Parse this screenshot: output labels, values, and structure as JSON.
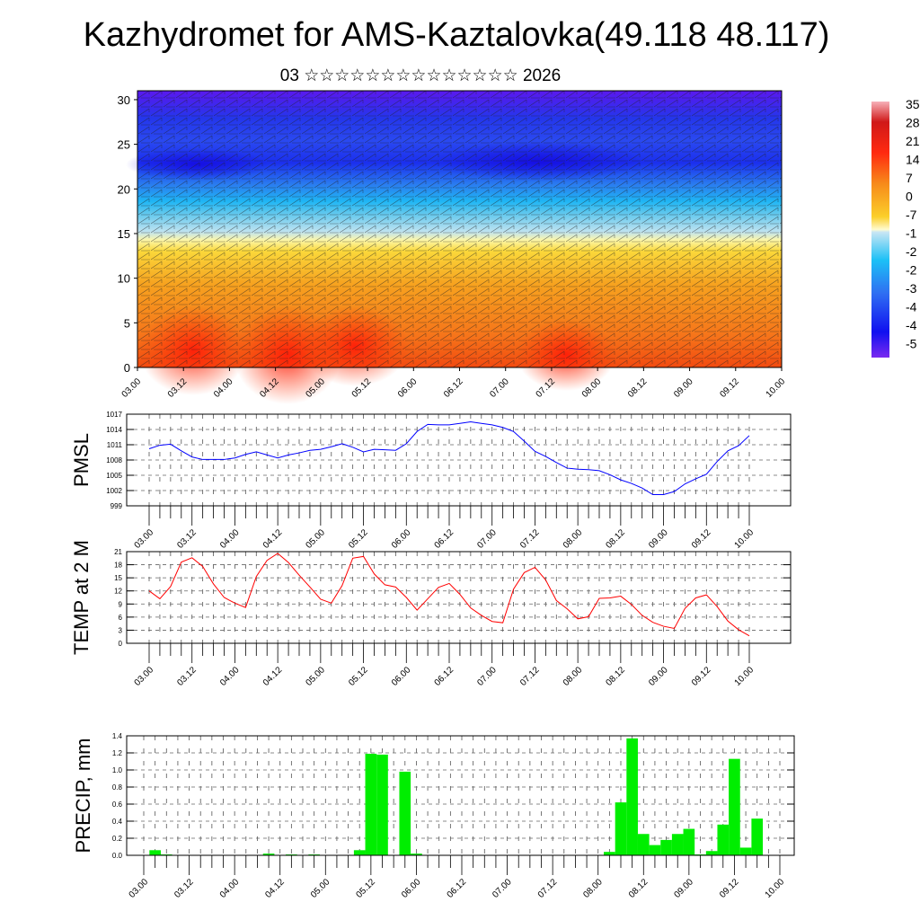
{
  "title": "Kazhydromet for AMS-Kaztalovka(49.118 48.117)",
  "subtitle": "03 ☆☆☆☆☆☆☆☆☆☆☆☆☆☆ 2026",
  "colors": {
    "pmsl": "#0000ff",
    "temp": "#ff0000",
    "precip": "#00ee00"
  },
  "chart_data": [
    {
      "type": "heatmap",
      "x_tick_labels": [
        "03.00",
        "03.12",
        "04.00",
        "04.12",
        "05.00",
        "05.12",
        "06.00",
        "06.12",
        "07.00",
        "07.12",
        "08.00",
        "08.12",
        "09.00",
        "09.12",
        "10.00"
      ],
      "y_ticks": [
        0,
        5,
        10,
        15,
        20,
        25,
        30
      ],
      "ylim": [
        0,
        31
      ],
      "colorbar_labels": [
        "35",
        "28",
        "21",
        "14",
        "7",
        "0",
        "-7",
        "-1",
        "-2",
        "-2",
        "-3",
        "-4",
        "-4",
        "-5"
      ]
    },
    {
      "type": "line",
      "ylabel": "PMSL",
      "x_tick_labels": [
        "03.00",
        "03.12",
        "04.00",
        "04.12",
        "05.00",
        "05.12",
        "06.00",
        "06.12",
        "07.00",
        "07.12",
        "08.00",
        "08.12",
        "09.00",
        "09.12",
        "10.00"
      ],
      "y_ticks": [
        999,
        1002,
        1005,
        1008,
        1011,
        1014,
        1017
      ],
      "ylim": [
        999,
        1017
      ],
      "values": [
        1010.2,
        1010.9,
        1011.1,
        1009.8,
        1008.6,
        1008.1,
        1008.1,
        1008.1,
        1008.4,
        1009.1,
        1009.6,
        1009.0,
        1008.4,
        1009.0,
        1009.4,
        1009.9,
        1010.1,
        1010.6,
        1011.2,
        1010.5,
        1009.6,
        1010.1,
        1010.0,
        1009.9,
        1011.2,
        1013.6,
        1015.0,
        1014.9,
        1014.9,
        1015.2,
        1015.5,
        1015.2,
        1014.9,
        1014.4,
        1013.6,
        1011.7,
        1009.7,
        1008.7,
        1007.5,
        1006.4,
        1006.2,
        1006.1,
        1005.9,
        1005.1,
        1004.1,
        1003.4,
        1002.5,
        1001.2,
        1001.2,
        1001.8,
        1003.3,
        1004.3,
        1005.2,
        1007.7,
        1009.8,
        1010.8,
        1012.8
      ]
    },
    {
      "type": "line",
      "ylabel": "TEMP at 2 M",
      "x_tick_labels": [
        "03.00",
        "03.12",
        "04.00",
        "04.12",
        "05.00",
        "05.12",
        "06.00",
        "06.12",
        "07.00",
        "07.12",
        "08.00",
        "08.12",
        "09.00",
        "09.12",
        "10.00"
      ],
      "y_ticks": [
        0,
        3,
        6,
        9,
        12,
        15,
        18,
        21
      ],
      "ylim": [
        0,
        21
      ],
      "values": [
        12.0,
        10.2,
        13.0,
        18.6,
        19.6,
        17.6,
        13.6,
        10.5,
        9.2,
        8.2,
        15.3,
        19.0,
        20.6,
        18.5,
        15.6,
        12.9,
        10.1,
        9.2,
        13.2,
        19.5,
        19.9,
        15.9,
        13.4,
        12.9,
        10.5,
        7.6,
        10.2,
        12.8,
        13.7,
        11.2,
        8.1,
        6.4,
        5.0,
        4.7,
        12.4,
        16.2,
        17.4,
        14.5,
        9.8,
        7.9,
        5.6,
        6.1,
        10.3,
        10.4,
        10.8,
        8.9,
        6.4,
        4.8,
        3.9,
        3.4,
        8.0,
        10.4,
        11.1,
        8.4,
        5.1,
        3.1,
        1.7
      ]
    },
    {
      "type": "bar",
      "ylabel": "PRECIP, mm",
      "x_tick_labels": [
        "03.00",
        "03.12",
        "04.00",
        "04.12",
        "05.00",
        "05.12",
        "06.00",
        "06.12",
        "07.00",
        "07.12",
        "08.00",
        "08.12",
        "09.00",
        "09.12",
        "10.00"
      ],
      "y_ticks": [
        "0.0",
        "0.2",
        "0.4",
        "0.6",
        "0.8",
        "1.0",
        "1.2",
        "1.4"
      ],
      "ylim": [
        0,
        1.4
      ],
      "values": [
        0.06,
        0.01,
        0,
        0,
        0,
        0,
        0,
        0,
        0,
        0,
        0.02,
        0,
        0.01,
        0,
        0.01,
        0,
        0,
        0,
        0.06,
        1.19,
        1.18,
        0,
        0.98,
        0.02,
        0,
        0,
        0,
        0,
        0,
        0,
        0,
        0,
        0,
        0,
        0,
        0,
        0,
        0,
        0,
        0,
        0.04,
        0.62,
        1.37,
        0.25,
        0.12,
        0.18,
        0.25,
        0.31,
        0.01,
        0.05,
        0.36,
        1.13,
        0.09,
        0.43,
        0,
        0
      ]
    }
  ]
}
